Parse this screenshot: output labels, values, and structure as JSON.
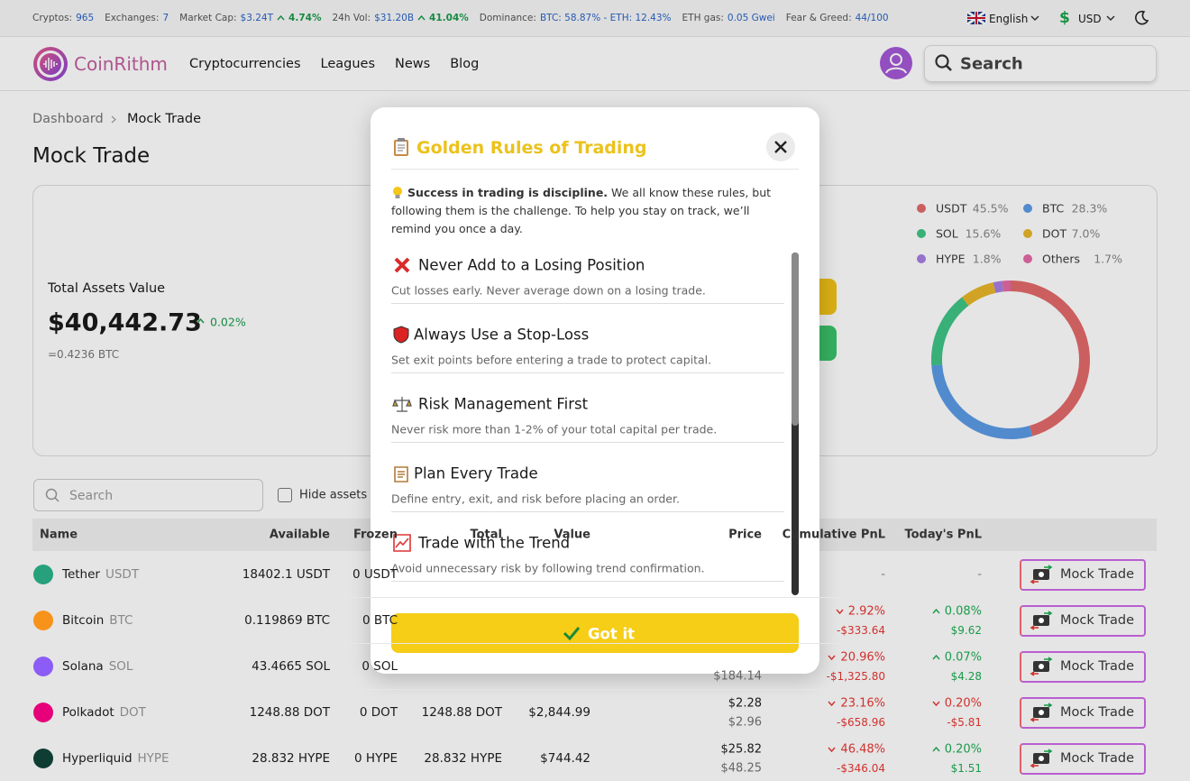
{
  "topbar": {
    "stats": [
      {
        "label": "Cryptos:",
        "value": "965"
      },
      {
        "label": "Exchanges:",
        "value": "7"
      },
      {
        "label": "Market Cap:",
        "value": "$3.24T",
        "change": "4.74%"
      },
      {
        "label": "24h Vol:",
        "value": "$31.20B",
        "change": "41.04%"
      },
      {
        "label": "Dominance:",
        "value": "BTC: 58.87% - ETH: 12.43%"
      },
      {
        "label": "ETH gas:",
        "value": "0.05 Gwei"
      },
      {
        "label": "Fear & Greed:",
        "value": "44/100"
      }
    ],
    "language": "English",
    "currency": "USD"
  },
  "nav": {
    "brand": "CoinRithm",
    "links": [
      "Cryptocurrencies",
      "Leagues",
      "News",
      "Blog"
    ],
    "search": "Search"
  },
  "breadcrumb": [
    "Dashboard",
    "Mock Trade"
  ],
  "title": "Mock Trade",
  "summary": {
    "label": "Total Assets Value",
    "value": "$40,442.73",
    "change": "0.02%",
    "btc": "=0.4236 BTC"
  },
  "allocation": [
    {
      "name": "USDT",
      "value": 45.5,
      "label": "45.5%",
      "color": "#e36a6a"
    },
    {
      "name": "BTC",
      "value": 28.3,
      "label": "28.3%",
      "color": "#5b9be6"
    },
    {
      "name": "SOL",
      "value": 15.6,
      "label": "15.6%",
      "color": "#3fc486"
    },
    {
      "name": "DOT",
      "value": 7,
      "label": "7.0%",
      "color": "#e8b62a"
    },
    {
      "name": "HYPE",
      "value": 1.8,
      "label": "1.8%",
      "color": "#a67fe2"
    },
    {
      "name": "Others",
      "value": 1.7,
      "label": "1.7%",
      "color": "#e56aa6"
    }
  ],
  "table": {
    "search": "Search",
    "hide_small": "Hide assets with small balance",
    "action": "Mock Trade",
    "headers": [
      "Name",
      "Available",
      "Frozen",
      "Total",
      "Value",
      "Price",
      "Cumulative PnL",
      "Today's PnL"
    ],
    "rows": [
      {
        "name": "Tether",
        "symbol": "USDT",
        "color": "#26a17b",
        "available": "18402.1 USDT",
        "frozen": "0 USDT",
        "cum": {
          "pct": "-"
        },
        "today": {
          "pct": "-"
        }
      },
      {
        "name": "Bitcoin",
        "symbol": "BTC",
        "color": "#f7931a",
        "available": "0.119869 BTC",
        "frozen": "0 BTC",
        "cum": {
          "pct": "2.92%",
          "amount": "-$333.64",
          "dir": "down"
        },
        "today": {
          "pct": "0.08%",
          "amount": "$9.62",
          "dir": "up"
        }
      },
      {
        "name": "Solana",
        "symbol": "SOL",
        "color": "#8b5cf6",
        "available": "43.4665 SOL",
        "frozen": "0 SOL",
        "avg": "$184.14",
        "cum": {
          "pct": "20.96%",
          "amount": "-$1,325.80",
          "dir": "down"
        },
        "today": {
          "pct": "0.07%",
          "amount": "$4.28",
          "dir": "up"
        }
      },
      {
        "name": "Polkadot",
        "symbol": "DOT",
        "color": "#e6007a",
        "available": "1248.88 DOT",
        "frozen": "0 DOT",
        "total": "1248.88 DOT",
        "value": "$2,844.99",
        "price": "$2.28",
        "avg": "$2.96",
        "cum": {
          "pct": "23.16%",
          "amount": "-$658.96",
          "dir": "down"
        },
        "today": {
          "pct": "0.20%",
          "amount": "-$5.81",
          "dir": "down"
        }
      },
      {
        "name": "Hyperliquid",
        "symbol": "HYPE",
        "color": "#0f3d33",
        "available": "28.832 HYPE",
        "frozen": "0 HYPE",
        "total": "28.832 HYPE",
        "value": "$744.42",
        "price": "$25.82",
        "avg": "$48.25",
        "cum": {
          "pct": "46.48%",
          "amount": "-$346.04",
          "dir": "down"
        },
        "today": {
          "pct": "0.20%",
          "amount": "$1.51",
          "dir": "up"
        }
      }
    ]
  },
  "modal": {
    "title": "Golden Rules of Trading",
    "intro_bold": "Success in trading is discipline.",
    "intro_text": "We all know these rules, but following them is the challenge. To help you stay on track, we’ll remind you once a day.",
    "rules": [
      {
        "title": "Never Add to a Losing Position",
        "text": "Cut losses early. Never average down on a losing trade."
      },
      {
        "title": "Always Use a Stop-Loss",
        "text": "Set exit points before entering a trade to protect capital."
      },
      {
        "title": "Risk Management First",
        "text": "Never risk more than 1-2% of your total capital per trade."
      },
      {
        "title": "Plan Every Trade",
        "text": "Define entry, exit, and risk before placing an order."
      },
      {
        "title": "Trade with the Trend",
        "text": "Avoid unnecessary risk by following trend confirmation."
      }
    ],
    "button": "Got it"
  }
}
